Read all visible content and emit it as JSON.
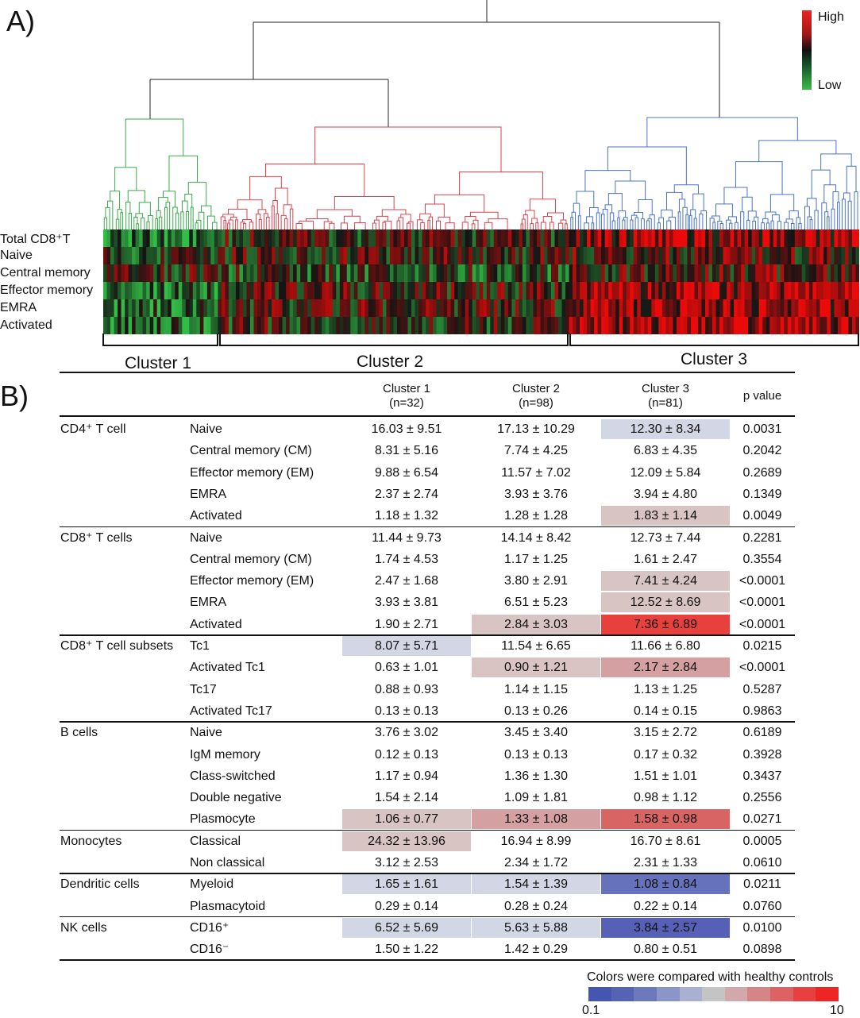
{
  "panel_a_label": "A)",
  "panel_b_label": "B)",
  "chart_data": {
    "type": "heatmap",
    "rows": [
      "Total CD8⁺T",
      "Naive",
      "Central memory",
      "Effector memory",
      "EMRA",
      "Activated"
    ],
    "clusters": [
      "Cluster 1",
      "Cluster 2",
      "Cluster 3"
    ],
    "cluster_colors": {
      "Cluster 1": "#3aaa4a",
      "Cluster 2": "#d9434f",
      "Cluster 3": "#4a74c4"
    },
    "dendrogram": true,
    "legend": {
      "high": "High",
      "low": "Low",
      "colors": [
        "#ee2222",
        "#111111",
        "#3dbb4a"
      ],
      "placement": "top-right"
    }
  },
  "table": {
    "headers": [
      {
        "name": "Cluster 1",
        "n": "(n=32)"
      },
      {
        "name": "Cluster 2",
        "n": "(n=98)"
      },
      {
        "name": "Cluster 3",
        "n": "(n=81)"
      },
      {
        "name": "p value"
      }
    ],
    "groups": [
      {
        "label": "CD4⁺ T cell",
        "rows": [
          {
            "label": "Naive",
            "values": [
              "16.03 ± 9.51",
              "17.13 ± 10.29",
              "12.30 ± 8.34"
            ],
            "p": "0.0031",
            "colors": [
              "",
              "",
              "#d3d6e4"
            ]
          },
          {
            "label": "Central memory (CM)",
            "values": [
              "8.31 ± 5.16",
              "7.74 ± 4.25",
              "6.83 ± 4.35"
            ],
            "p": "0.2042",
            "colors": [
              "",
              "",
              ""
            ]
          },
          {
            "label": "Effector memory (EM)",
            "values": [
              "9.88 ± 6.54",
              "11.57 ± 7.02",
              "12.09 ± 5.84"
            ],
            "p": "0.2689",
            "colors": [
              "",
              "",
              ""
            ]
          },
          {
            "label": "EMRA",
            "values": [
              "2.37 ± 2.74",
              "3.93 ± 3.76",
              "3.94 ± 4.80"
            ],
            "p": "0.1349",
            "colors": [
              "",
              "",
              ""
            ]
          },
          {
            "label": "Activated",
            "values": [
              "1.18 ± 1.32",
              "1.28 ± 1.28",
              "1.83 ± 1.14"
            ],
            "p": "0.0049",
            "colors": [
              "",
              "",
              "#d9c4c4"
            ]
          }
        ]
      },
      {
        "label": "CD8⁺ T cells",
        "rows": [
          {
            "label": "Naive",
            "values": [
              "11.44 ± 9.73",
              "14.14 ± 8.42",
              "12.73 ± 7.44"
            ],
            "p": "0.2281",
            "colors": [
              "",
              "",
              ""
            ]
          },
          {
            "label": "Central memory (CM)",
            "values": [
              "1.74 ± 4.53",
              "1.17 ± 1.25",
              "1.61 ± 2.47"
            ],
            "p": "0.3554",
            "colors": [
              "",
              "",
              ""
            ]
          },
          {
            "label": "Effector memory (EM)",
            "values": [
              "2.47 ± 1.68",
              "3.80 ± 2.91",
              "7.41 ± 4.24"
            ],
            "p": "<0.0001",
            "colors": [
              "",
              "",
              "#d9c4c4"
            ]
          },
          {
            "label": "EMRA",
            "values": [
              "3.93 ± 3.81",
              "6.51 ± 5.23",
              "12.52 ± 8.69"
            ],
            "p": "<0.0001",
            "colors": [
              "",
              "",
              "#d9c4c4"
            ]
          },
          {
            "label": "Activated",
            "values": [
              "1.90 ± 2.71",
              "2.84 ± 3.03",
              "7.36 ± 6.89"
            ],
            "p": "<0.0001",
            "colors": [
              "",
              "#d9c4c4",
              "#e8403d"
            ]
          }
        ]
      },
      {
        "label": "CD8⁺ T cell subsets",
        "rows": [
          {
            "label": "Tc1",
            "values": [
              "8.07 ± 5.71",
              "11.54 ± 6.65",
              "11.66 ± 6.80"
            ],
            "p": "0.0215",
            "colors": [
              "#d3d6e4",
              "",
              ""
            ]
          },
          {
            "label": "Activated Tc1",
            "values": [
              "0.63 ± 1.01",
              "0.90 ± 1.21",
              "2.17 ± 2.84"
            ],
            "p": "<0.0001",
            "colors": [
              "",
              "#d9c4c4",
              "#d4a0a2"
            ]
          },
          {
            "label": "Tc17",
            "values": [
              "0.88 ± 0.93",
              "1.14 ± 1.15",
              "1.13 ± 1.25"
            ],
            "p": "0.5287",
            "colors": [
              "",
              "",
              ""
            ]
          },
          {
            "label": "Activated Tc17",
            "values": [
              "0.13 ± 0.13",
              "0.13 ± 0.26",
              "0.14 ± 0.15"
            ],
            "p": "0.9863",
            "colors": [
              "",
              "",
              ""
            ]
          }
        ]
      },
      {
        "label": "B cells",
        "rows": [
          {
            "label": "Naive",
            "values": [
              "3.76 ± 3.02",
              "3.45 ± 3.40",
              "3.15 ± 2.72"
            ],
            "p": "0.6189",
            "colors": [
              "",
              "",
              ""
            ]
          },
          {
            "label": "IgM memory",
            "values": [
              "0.12 ± 0.13",
              "0.13 ± 0.13",
              "0.17 ± 0.32"
            ],
            "p": "0.3928",
            "colors": [
              "",
              "",
              ""
            ]
          },
          {
            "label": "Class-switched",
            "values": [
              "1.17 ± 0.94",
              "1.36 ± 1.30",
              "1.51 ± 1.01"
            ],
            "p": "0.3437",
            "colors": [
              "",
              "",
              ""
            ]
          },
          {
            "label": "Double negative",
            "values": [
              "1.54 ± 2.14",
              "1.09 ± 1.81",
              "0.98 ± 1.12"
            ],
            "p": "0.2556",
            "colors": [
              "",
              "",
              ""
            ]
          },
          {
            "label": "Plasmocyte",
            "values": [
              "1.06 ± 0.77",
              "1.33 ± 1.08",
              "1.58 ± 0.98"
            ],
            "p": "0.0271",
            "colors": [
              "#d9c4c4",
              "#d4a0a2",
              "#d96464"
            ]
          }
        ]
      },
      {
        "label": "Monocytes",
        "rows": [
          {
            "label": "Classical",
            "values": [
              "24.32 ± 13.96",
              "16.94 ± 8.99",
              "16.70 ± 8.61"
            ],
            "p": "0.0005",
            "colors": [
              "#d9c4c4",
              "",
              ""
            ]
          },
          {
            "label": "Non classical",
            "values": [
              "3.12 ± 2.53",
              "2.34 ± 1.72",
              "2.31 ± 1.33"
            ],
            "p": "0.0610",
            "colors": [
              "",
              "",
              ""
            ]
          }
        ]
      },
      {
        "label": "Dendritic cells",
        "rows": [
          {
            "label": "Myeloid",
            "values": [
              "1.65 ± 1.61",
              "1.54 ± 1.39",
              "1.08 ± 0.84"
            ],
            "p": "0.0211",
            "colors": [
              "#d3d6e4",
              "#d3d6e4",
              "#6672bc"
            ]
          },
          {
            "label": "Plasmacytoid",
            "values": [
              "0.29 ± 0.14",
              "0.28 ± 0.24",
              "0.22 ± 0.14"
            ],
            "p": "0.0760",
            "colors": [
              "",
              "",
              ""
            ]
          }
        ]
      },
      {
        "label": "NK cells",
        "rows": [
          {
            "label": "CD16⁺",
            "values": [
              "6.52 ± 5.69",
              "5.63 ± 5.88",
              "3.84 ± 2.57"
            ],
            "p": "0.0100",
            "colors": [
              "#d3d6e4",
              "#d3d6e4",
              "#5660b6"
            ]
          },
          {
            "label": "CD16⁻",
            "values": [
              "1.50 ± 1.22",
              "1.42 ± 0.29",
              "0.80 ± 0.51"
            ],
            "p": "0.0898",
            "colors": [
              "",
              "",
              ""
            ]
          }
        ]
      }
    ]
  },
  "color_scale": {
    "caption": "Colors were compared with healthy controls",
    "min_label": "0.1",
    "max_label": "10",
    "colors": [
      "#4456b0",
      "#5563b4",
      "#6d79bd",
      "#8c95c9",
      "#aab0d2",
      "#c4c4c4",
      "#d2a8aa",
      "#d68587",
      "#dc6264",
      "#e84040",
      "#ee2525"
    ]
  }
}
